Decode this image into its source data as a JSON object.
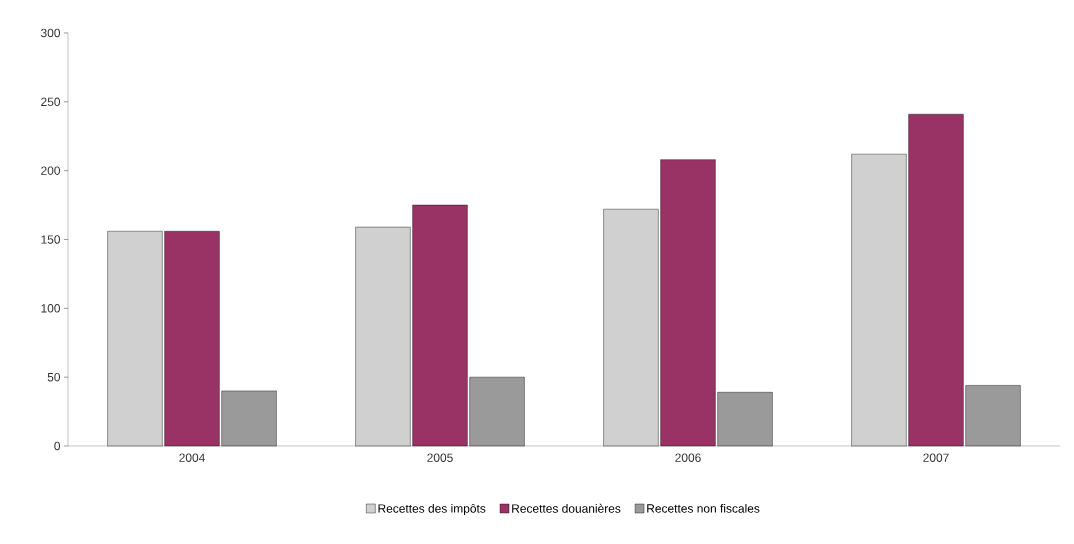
{
  "chart_data": {
    "type": "bar",
    "categories": [
      "2004",
      "2005",
      "2006",
      "2007"
    ],
    "series": [
      {
        "name": "Recettes des impôts",
        "color": "#d0d0d0",
        "values": [
          156,
          159,
          172,
          212
        ]
      },
      {
        "name": "Recettes douanières",
        "color": "#993366",
        "values": [
          156,
          175,
          208,
          241
        ]
      },
      {
        "name": "Recettes non fiscales",
        "color": "#9a9a9a",
        "values": [
          40,
          50,
          39,
          44
        ]
      }
    ],
    "ylim": [
      0,
      300
    ],
    "yticks": [
      0,
      50,
      100,
      150,
      200,
      250,
      300
    ],
    "grid": false,
    "legend": "bottom"
  }
}
